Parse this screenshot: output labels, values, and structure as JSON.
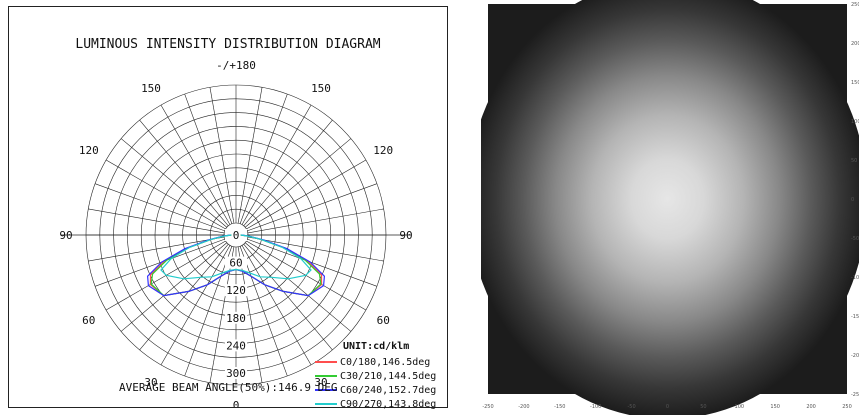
{
  "chart_data": [
    {
      "type": "polar",
      "title": "LUMINOUS INTENSITY DISTRIBUTION DIAGRAM",
      "angle_labels": [
        "-/+180",
        "150",
        "120",
        "90",
        "60",
        "30",
        "0",
        "30",
        "60",
        "90",
        "120",
        "150"
      ],
      "radial_labels": [
        "0",
        "60",
        "120",
        "180",
        "240",
        "300"
      ],
      "radial_ticks": [
        0,
        60,
        120,
        180,
        240,
        300
      ],
      "radial_max": 300,
      "unit": "UNIT:cd/klm",
      "footer": "AVERAGE BEAM ANGLE(50%):146.9 DEG",
      "angles": [
        0,
        10,
        20,
        30,
        40,
        50,
        60,
        65,
        70,
        75,
        80,
        85,
        90
      ],
      "series": [
        {
          "name": "C0/180,146.5deg",
          "color": "#ff4d4d",
          "values": [
            75,
            80,
            95,
            125,
            160,
            205,
            215,
            205,
            165,
            110,
            55,
            25,
            10
          ]
        },
        {
          "name": "C30/210,144.5deg",
          "color": "#33cc33",
          "values": [
            75,
            80,
            95,
            125,
            160,
            205,
            213,
            200,
            160,
            105,
            55,
            25,
            10
          ]
        },
        {
          "name": "C60/240,152.7deg",
          "color": "#3333ff",
          "values": [
            75,
            80,
            95,
            125,
            160,
            205,
            220,
            212,
            172,
            115,
            60,
            28,
            12
          ]
        },
        {
          "name": "C90/270,143.8deg",
          "color": "#22cccc",
          "values": [
            75,
            78,
            88,
            105,
            120,
            148,
            175,
            180,
            150,
            105,
            55,
            25,
            10
          ]
        }
      ]
    },
    {
      "type": "heatmap",
      "x_ticks": [
        "-250",
        "-200",
        "-150",
        "-100",
        "-50",
        "0",
        "50",
        "100",
        "150",
        "200",
        "250"
      ],
      "y_ticks": [
        "250",
        "200",
        "150",
        "100",
        "50",
        "0",
        "-50",
        "-100",
        "-150",
        "-200",
        "-250"
      ],
      "xlim": [
        -250,
        250
      ],
      "ylim": [
        -250,
        250
      ],
      "center": [
        0,
        0
      ],
      "colors": {
        "background": "#1c1c1c",
        "peak": "#e6e6e6"
      }
    }
  ]
}
